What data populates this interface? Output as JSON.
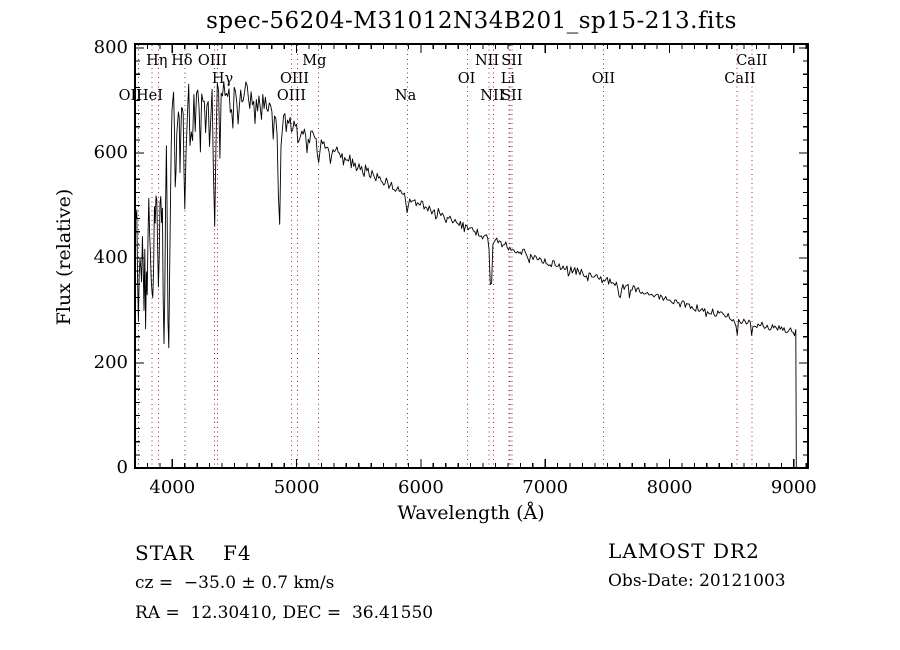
{
  "title": "spec-56204-M31012N34B201_sp15-213.fits",
  "colors": {
    "background": "#ffffff",
    "spectrum": "#000000",
    "frame": "#000000",
    "text": "#000000",
    "marker_line": "#9b2d2d"
  },
  "annotations": {
    "class_label": "STAR",
    "subclass": "F4",
    "cz": "cz =  −35.0 ± 0.7 km/s",
    "ra_dec": "RA =  12.30410, DEC =  36.41550",
    "survey": "LAMOST DR2",
    "obs_date": "Obs-Date: 20121003"
  },
  "chart_data": {
    "type": "line",
    "title": "spec-56204-M31012N34B201_sp15-213.fits",
    "xlabel": "Wavelength (Å)",
    "ylabel": "Flux (relative)",
    "xlim": [
      3700,
      9114
    ],
    "ylim": [
      0,
      800
    ],
    "x_ticks": [
      4000,
      5000,
      6000,
      7000,
      8000,
      9000
    ],
    "y_ticks": [
      0,
      200,
      400,
      600,
      800
    ],
    "x_minor_step": 100,
    "y_minor_step": 25,
    "grid": false,
    "pixel_map": {
      "x": [
        135,
        808
      ],
      "wavelength": [
        3700,
        9114
      ],
      "y": [
        468,
        48
      ],
      "flux": [
        0,
        800
      ]
    },
    "continuum": [
      [
        3700,
        510
      ],
      [
        3760,
        548
      ],
      [
        3830,
        588
      ],
      [
        3900,
        622
      ],
      [
        3950,
        645
      ],
      [
        4000,
        672
      ],
      [
        4050,
        695
      ],
      [
        4100,
        707
      ],
      [
        4150,
        716
      ],
      [
        4200,
        720
      ],
      [
        4300,
        724
      ],
      [
        4400,
        722
      ],
      [
        4500,
        719
      ],
      [
        4600,
        712
      ],
      [
        4700,
        701
      ],
      [
        4800,
        680
      ],
      [
        4861,
        662
      ],
      [
        4920,
        658
      ],
      [
        5000,
        646
      ],
      [
        5100,
        636
      ],
      [
        5175,
        620
      ],
      [
        5300,
        603
      ],
      [
        5400,
        590
      ],
      [
        5500,
        574
      ],
      [
        5600,
        561
      ],
      [
        5700,
        547
      ],
      [
        5800,
        532
      ],
      [
        5900,
        514
      ],
      [
        6000,
        502
      ],
      [
        6100,
        490
      ],
      [
        6200,
        479
      ],
      [
        6300,
        466
      ],
      [
        6400,
        454
      ],
      [
        6500,
        444
      ],
      [
        6563,
        437
      ],
      [
        6700,
        422
      ],
      [
        6800,
        413
      ],
      [
        6900,
        403
      ],
      [
        7000,
        394
      ],
      [
        7100,
        386
      ],
      [
        7200,
        379
      ],
      [
        7300,
        371
      ],
      [
        7400,
        363
      ],
      [
        7600,
        349
      ],
      [
        7800,
        336
      ],
      [
        8000,
        319
      ],
      [
        8200,
        306
      ],
      [
        8400,
        293
      ],
      [
        8600,
        279
      ],
      [
        8800,
        268
      ],
      [
        8950,
        262
      ],
      [
        9020,
        257
      ]
    ],
    "absorption_lines": [
      {
        "wavelength": 3727,
        "floor": 280,
        "sigma": 8
      },
      {
        "wavelength": 3750,
        "floor": 340,
        "sigma": 6
      },
      {
        "wavelength": 3772,
        "floor": 300,
        "sigma": 7
      },
      {
        "wavelength": 3798,
        "floor": 330,
        "sigma": 7
      },
      {
        "wavelength": 3820,
        "floor": 430,
        "sigma": 5
      },
      {
        "wavelength": 3835,
        "floor": 330,
        "sigma": 7
      },
      {
        "wavelength": 3860,
        "floor": 440,
        "sigma": 5
      },
      {
        "wavelength": 3889,
        "floor": 345,
        "sigma": 7
      },
      {
        "wavelength": 3912,
        "floor": 460,
        "sigma": 5
      },
      {
        "wavelength": 3934,
        "floor": 235,
        "sigma": 8
      },
      {
        "wavelength": 3970,
        "floor": 218,
        "sigma": 9
      },
      {
        "wavelength": 4026,
        "floor": 530,
        "sigma": 6
      },
      {
        "wavelength": 4063,
        "floor": 560,
        "sigma": 5
      },
      {
        "wavelength": 4102,
        "floor": 490,
        "sigma": 8
      },
      {
        "wavelength": 4144,
        "floor": 610,
        "sigma": 5
      },
      {
        "wavelength": 4227,
        "floor": 600,
        "sigma": 5
      },
      {
        "wavelength": 4271,
        "floor": 620,
        "sigma": 5
      },
      {
        "wavelength": 4300,
        "floor": 612,
        "sigma": 7
      },
      {
        "wavelength": 4340,
        "floor": 458,
        "sigma": 8
      },
      {
        "wavelength": 4383,
        "floor": 590,
        "sigma": 5
      },
      {
        "wavelength": 4472,
        "floor": 645,
        "sigma": 5
      },
      {
        "wavelength": 4530,
        "floor": 655,
        "sigma": 5
      },
      {
        "wavelength": 4668,
        "floor": 645,
        "sigma": 5
      },
      {
        "wavelength": 4861,
        "floor": 448,
        "sigma": 8
      },
      {
        "wavelength": 5015,
        "floor": 605,
        "sigma": 5
      },
      {
        "wavelength": 5175,
        "floor": 580,
        "sigma": 8
      },
      {
        "wavelength": 5270,
        "floor": 578,
        "sigma": 5
      },
      {
        "wavelength": 5892,
        "floor": 484,
        "sigma": 7
      },
      {
        "wavelength": 6122,
        "floor": 472,
        "sigma": 5
      },
      {
        "wavelength": 6366,
        "floor": 465,
        "sigma": 5
      },
      {
        "wavelength": 6563,
        "floor": 332,
        "sigma": 8
      },
      {
        "wavelength": 6870,
        "floor": 390,
        "sigma": 7
      },
      {
        "wavelength": 7190,
        "floor": 362,
        "sigma": 6
      },
      {
        "wavelength": 7600,
        "floor": 322,
        "sigma": 9
      },
      {
        "wavelength": 8498,
        "floor": 280,
        "sigma": 5
      },
      {
        "wavelength": 8542,
        "floor": 248,
        "sigma": 6
      },
      {
        "wavelength": 8662,
        "floor": 252,
        "sigma": 6
      }
    ],
    "noise_segments": [
      {
        "up_to": 3900,
        "amplitude": 110,
        "deep_spike_prob": 0.18
      },
      {
        "up_to": 3990,
        "amplitude": 85,
        "deep_spike_prob": 0.15
      },
      {
        "up_to": 4060,
        "amplitude": 48,
        "deep_spike_prob": 0.12
      },
      {
        "up_to": 4420,
        "amplitude": 32,
        "deep_spike_prob": 0.14
      },
      {
        "up_to": 4700,
        "amplitude": 25,
        "deep_spike_prob": 0.08
      },
      {
        "up_to": 5000,
        "amplitude": 18,
        "deep_spike_prob": 0.05
      },
      {
        "up_to": 5600,
        "amplitude": 12,
        "deep_spike_prob": 0.03
      },
      {
        "up_to": 6300,
        "amplitude": 9,
        "deep_spike_prob": 0.02
      },
      {
        "up_to": 7300,
        "amplitude": 7,
        "deep_spike_prob": 0.015
      },
      {
        "up_to": 9120,
        "amplitude": 7,
        "deep_spike_prob": 0.02
      }
    ],
    "cutoff": {
      "wavelength": 9020,
      "drop_to": 0
    },
    "marked_lines": [
      {
        "label": "OII",
        "wavelength": 3727,
        "row": 3,
        "dx": -8
      },
      {
        "label": "Hη",
        "wavelength": 3835,
        "row": 1,
        "dx": 5
      },
      {
        "label": "HeI",
        "wavelength": 3889,
        "row": 3,
        "dx": -9
      },
      {
        "label": "Hδ",
        "wavelength": 4102,
        "row": 1,
        "dx": -3
      },
      {
        "label": "Hγ",
        "wavelength": 4340,
        "row": 2,
        "dx": 8
      },
      {
        "label": "OIII",
        "wavelength": 4363,
        "row": 1,
        "dx": -5
      },
      {
        "label": "OIII",
        "wavelength": 4959,
        "row": 2,
        "dx": 3
      },
      {
        "label": "OIII",
        "wavelength": 5007,
        "row": 3,
        "dx": -6
      },
      {
        "label": "Mg",
        "wavelength": 5175,
        "row": 1,
        "dx": -4
      },
      {
        "label": "Na",
        "wavelength": 5893,
        "row": 3,
        "dx": -2
      },
      {
        "label": "OI",
        "wavelength": 6375,
        "row": 2,
        "dx": -1
      },
      {
        "label": "NII",
        "wavelength": 6548,
        "row": 1,
        "dx": -2
      },
      {
        "label": "NII",
        "wavelength": 6583,
        "row": 3,
        "dx": -1
      },
      {
        "label": "Li",
        "wavelength": 6708,
        "row": 2,
        "dx": -1
      },
      {
        "label": "SII",
        "wavelength": 6716,
        "row": 1,
        "dx": 2
      },
      {
        "label": "SII",
        "wavelength": 6731,
        "row": 3,
        "dx": 0
      },
      {
        "label": "OII",
        "wavelength": 7468,
        "row": 2,
        "dx": 0
      },
      {
        "label": "CaII",
        "wavelength": 8542,
        "row": 2,
        "dx": 3
      },
      {
        "label": "CaII",
        "wavelength": 8662,
        "row": 1,
        "dx": 0
      }
    ]
  }
}
